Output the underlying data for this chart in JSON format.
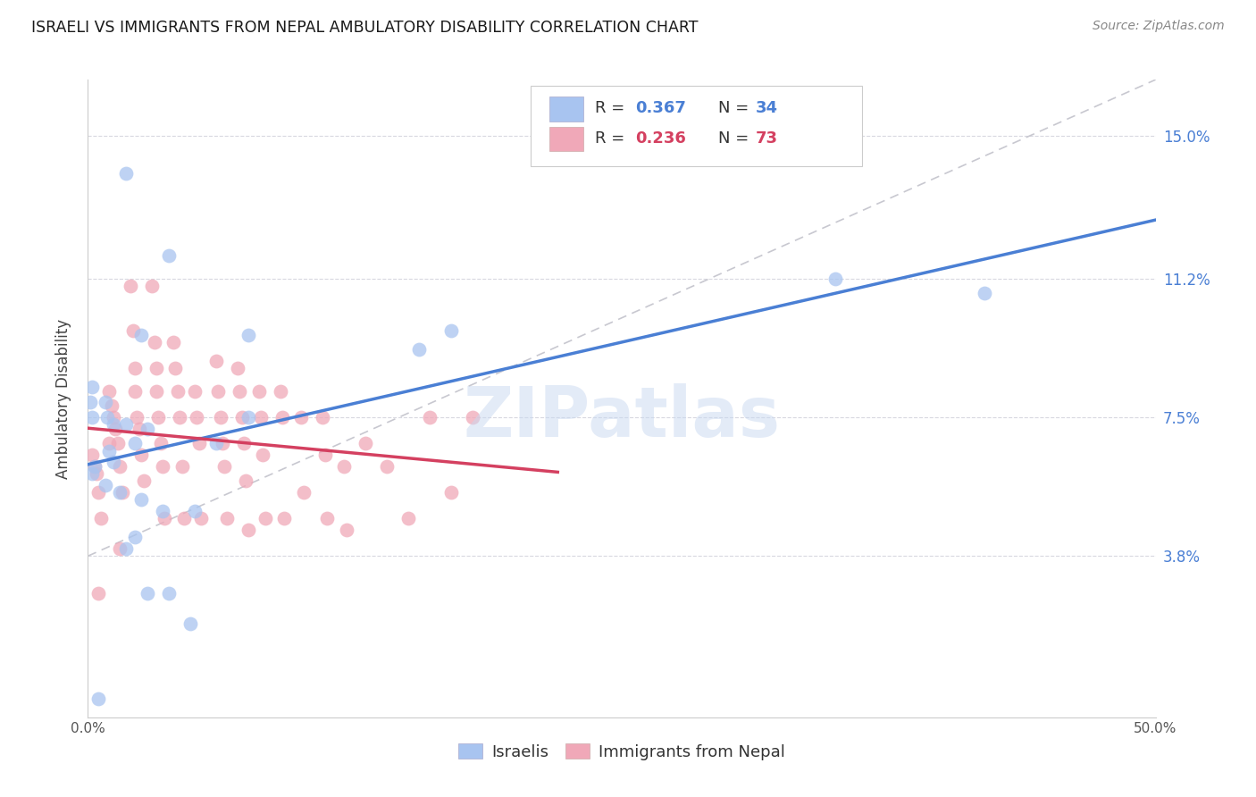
{
  "title": "ISRAELI VS IMMIGRANTS FROM NEPAL AMBULATORY DISABILITY CORRELATION CHART",
  "source": "Source: ZipAtlas.com",
  "ylabel": "Ambulatory Disability",
  "ytick_labels": [
    "3.8%",
    "7.5%",
    "11.2%",
    "15.0%"
  ],
  "ytick_values": [
    0.038,
    0.075,
    0.112,
    0.15
  ],
  "xlim": [
    0.0,
    0.5
  ],
  "ylim": [
    -0.005,
    0.165
  ],
  "watermark": "ZIPatlas",
  "legend_israeli_R": "0.367",
  "legend_israeli_N": "34",
  "legend_nepal_R": "0.236",
  "legend_nepal_N": "73",
  "israeli_color": "#a8c4f0",
  "nepal_color": "#f0a8b8",
  "israeli_line_color": "#4a7fd4",
  "nepal_line_color": "#d44060",
  "dashed_line_color": "#c8c8d0",
  "israeli_points_x": [
    0.018,
    0.038,
    0.025,
    0.075,
    0.002,
    0.008,
    0.001,
    0.002,
    0.009,
    0.012,
    0.018,
    0.028,
    0.022,
    0.01,
    0.012,
    0.003,
    0.002,
    0.008,
    0.015,
    0.025,
    0.035,
    0.05,
    0.075,
    0.155,
    0.17,
    0.35,
    0.42,
    0.06,
    0.022,
    0.018,
    0.028,
    0.038,
    0.048,
    0.005
  ],
  "israeli_points_y": [
    0.14,
    0.118,
    0.097,
    0.097,
    0.083,
    0.079,
    0.079,
    0.075,
    0.075,
    0.073,
    0.073,
    0.072,
    0.068,
    0.066,
    0.063,
    0.062,
    0.06,
    0.057,
    0.055,
    0.053,
    0.05,
    0.05,
    0.075,
    0.093,
    0.098,
    0.112,
    0.108,
    0.068,
    0.043,
    0.04,
    0.028,
    0.028,
    0.02,
    0.0
  ],
  "nepal_points_x": [
    0.002,
    0.003,
    0.004,
    0.005,
    0.006,
    0.01,
    0.011,
    0.012,
    0.013,
    0.014,
    0.015,
    0.016,
    0.02,
    0.021,
    0.022,
    0.022,
    0.023,
    0.024,
    0.025,
    0.026,
    0.03,
    0.031,
    0.032,
    0.032,
    0.033,
    0.034,
    0.035,
    0.036,
    0.04,
    0.041,
    0.042,
    0.043,
    0.044,
    0.045,
    0.05,
    0.051,
    0.052,
    0.053,
    0.06,
    0.061,
    0.062,
    0.063,
    0.064,
    0.065,
    0.07,
    0.071,
    0.072,
    0.073,
    0.074,
    0.075,
    0.08,
    0.081,
    0.082,
    0.083,
    0.09,
    0.091,
    0.092,
    0.1,
    0.101,
    0.11,
    0.111,
    0.112,
    0.12,
    0.121,
    0.13,
    0.14,
    0.15,
    0.16,
    0.17,
    0.18,
    0.005,
    0.01,
    0.015
  ],
  "nepal_points_y": [
    0.065,
    0.062,
    0.06,
    0.055,
    0.048,
    0.082,
    0.078,
    0.075,
    0.072,
    0.068,
    0.062,
    0.055,
    0.11,
    0.098,
    0.088,
    0.082,
    0.075,
    0.072,
    0.065,
    0.058,
    0.11,
    0.095,
    0.088,
    0.082,
    0.075,
    0.068,
    0.062,
    0.048,
    0.095,
    0.088,
    0.082,
    0.075,
    0.062,
    0.048,
    0.082,
    0.075,
    0.068,
    0.048,
    0.09,
    0.082,
    0.075,
    0.068,
    0.062,
    0.048,
    0.088,
    0.082,
    0.075,
    0.068,
    0.058,
    0.045,
    0.082,
    0.075,
    0.065,
    0.048,
    0.082,
    0.075,
    0.048,
    0.075,
    0.055,
    0.075,
    0.065,
    0.048,
    0.062,
    0.045,
    0.068,
    0.062,
    0.048,
    0.075,
    0.055,
    0.075,
    0.028,
    0.068,
    0.04
  ]
}
